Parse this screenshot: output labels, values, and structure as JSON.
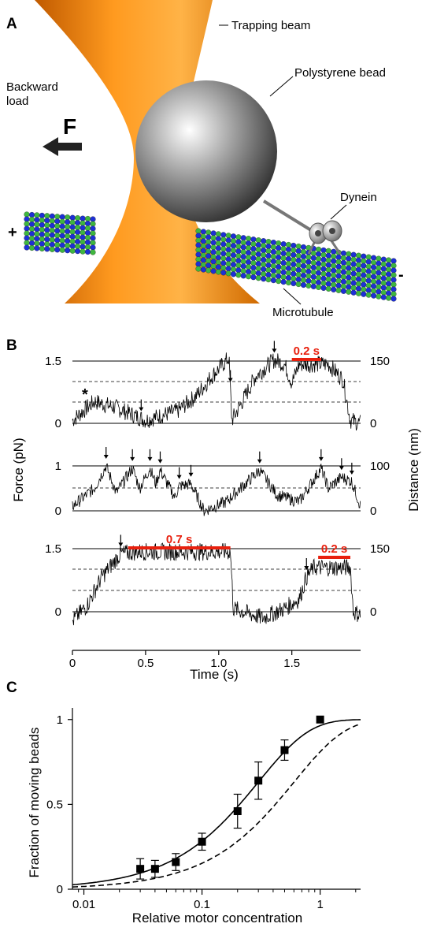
{
  "figure": {
    "panels": {
      "a": "A",
      "b": "B",
      "c": "C"
    }
  },
  "panel_a": {
    "labels": {
      "trapping_beam": "Trapping beam",
      "polystyrene_bead": "Polystyrene bead",
      "backward_load": "Backward\nload",
      "force": "F",
      "dynein": "Dynein",
      "microtubule": "Microtubule",
      "plus_end": "+",
      "minus_end": "-"
    },
    "colors": {
      "beam": "#f59a1a",
      "bead": "#8c8c8c",
      "tubulin_a": "#1e2fd6",
      "tubulin_b": "#3fb63f"
    }
  },
  "panel_b": {
    "ylabel_left": "Force (pN)",
    "ylabel_right": "Distance (nm)",
    "xlabel": "Time (s)",
    "x_ticks": [
      "0",
      "0.5",
      "1.0",
      "1.5"
    ],
    "traces": [
      {
        "left_ticks": [
          "1.5",
          "0"
        ],
        "right_ticks": [
          "150",
          "0"
        ],
        "star": "*",
        "bar_label": "0.2 s",
        "arrows_s": [
          0.47,
          1.08,
          1.38
        ]
      },
      {
        "left_ticks": [
          "1",
          "0"
        ],
        "right_ticks": [
          "100",
          "0"
        ],
        "arrows_s": [
          0.23,
          0.41,
          0.53,
          0.6,
          0.73,
          0.81,
          1.28,
          1.7,
          1.84,
          1.91
        ]
      },
      {
        "left_ticks": [
          "1.5",
          "0"
        ],
        "right_ticks": [
          "150",
          "0"
        ],
        "bar1_label": "0.7 s",
        "bar2_label": "0.2 s",
        "arrows_s": [
          0.33,
          1.6
        ]
      }
    ],
    "colors": {
      "bar": "#e8200e"
    }
  },
  "chart_data": {
    "type": "scatter",
    "xlabel": "Relative motor concentration",
    "ylabel": "Fraction of moving beads",
    "x_scale": "log",
    "xlim": [
      0.008,
      2.2
    ],
    "ylim": [
      0,
      1.05
    ],
    "x_ticks": [
      "0.01",
      "0.1",
      "1"
    ],
    "y_ticks": [
      "0",
      "0.5",
      "1"
    ],
    "series": [
      {
        "x": [
          0.03,
          0.04,
          0.06,
          0.1,
          0.2,
          0.3,
          0.5,
          1.0
        ],
        "y": [
          0.12,
          0.12,
          0.16,
          0.28,
          0.46,
          0.64,
          0.82,
          1.0
        ],
        "yerr": [
          0.06,
          0.05,
          0.05,
          0.05,
          0.1,
          0.11,
          0.06,
          0.0
        ]
      }
    ],
    "fit_curves": [
      {
        "style": "solid",
        "k": 3.33
      },
      {
        "style": "dashed",
        "k": 1.66
      }
    ]
  }
}
